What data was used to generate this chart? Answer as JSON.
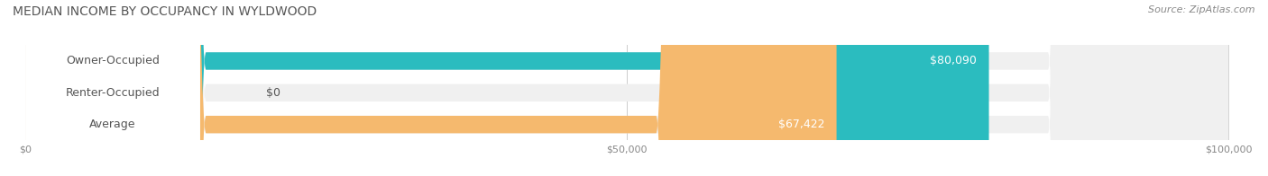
{
  "title": "MEDIAN INCOME BY OCCUPANCY IN WYLDWOOD",
  "source": "Source: ZipAtlas.com",
  "categories": [
    "Owner-Occupied",
    "Renter-Occupied",
    "Average"
  ],
  "values": [
    80090,
    0,
    67422
  ],
  "bar_colors": [
    "#2bbcbf",
    "#c9a8d4",
    "#f5b96e"
  ],
  "bar_bg_color": "#f0f0f0",
  "label_values": [
    "$80,090",
    "$0",
    "$67,422"
  ],
  "xlim": [
    0,
    100000
  ],
  "xticks": [
    0,
    50000,
    100000
  ],
  "xtick_labels": [
    "$0",
    "$50,000",
    "$100,000"
  ],
  "bar_height": 0.55,
  "figsize": [
    14.06,
    1.96
  ],
  "dpi": 100
}
